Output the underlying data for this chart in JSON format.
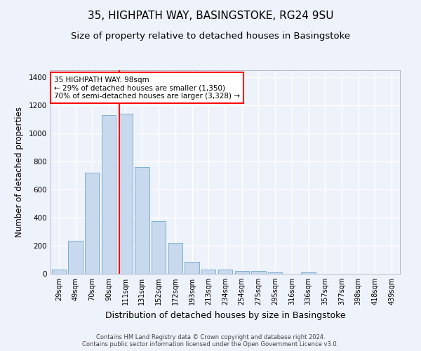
{
  "title": "35, HIGHPATH WAY, BASINGSTOKE, RG24 9SU",
  "subtitle": "Size of property relative to detached houses in Basingstoke",
  "xlabel": "Distribution of detached houses by size in Basingstoke",
  "ylabel": "Number of detached properties",
  "footer_line1": "Contains HM Land Registry data © Crown copyright and database right 2024.",
  "footer_line2": "Contains public sector information licensed under the Open Government Licence v3.0.",
  "categories": [
    "29sqm",
    "49sqm",
    "70sqm",
    "90sqm",
    "111sqm",
    "131sqm",
    "152sqm",
    "172sqm",
    "193sqm",
    "213sqm",
    "234sqm",
    "254sqm",
    "275sqm",
    "295sqm",
    "316sqm",
    "336sqm",
    "357sqm",
    "377sqm",
    "398sqm",
    "418sqm",
    "439sqm"
  ],
  "values": [
    28,
    235,
    720,
    1130,
    1140,
    760,
    375,
    220,
    85,
    28,
    30,
    20,
    18,
    10,
    0,
    10,
    0,
    0,
    0,
    0,
    0
  ],
  "bar_color": "#c9d9ed",
  "bar_edge_color": "#7aafd4",
  "vline_x": 3.62,
  "vline_color": "red",
  "annotation_text": "35 HIGHPATH WAY: 98sqm\n← 29% of detached houses are smaller (1,350)\n70% of semi-detached houses are larger (3,328) →",
  "annotation_box_color": "white",
  "annotation_box_edge": "red",
  "ylim": [
    0,
    1450
  ],
  "background_color": "#eef2fa",
  "grid_color": "white",
  "title_fontsize": 11,
  "subtitle_fontsize": 9.5,
  "xlabel_fontsize": 9,
  "ylabel_fontsize": 8.5,
  "tick_fontsize": 7,
  "annotation_fontsize": 7.5,
  "footer_fontsize": 6
}
